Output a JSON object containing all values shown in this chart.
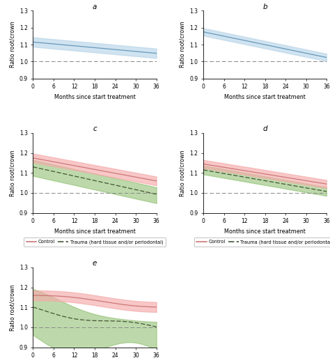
{
  "title_a": "a",
  "title_b": "b",
  "title_c": "c",
  "title_d": "d",
  "title_e": "e",
  "xlabel": "Months since start treatment",
  "ylabel": "Ratio root/crown",
  "x_ticks": [
    0,
    6,
    12,
    18,
    24,
    30,
    36
  ],
  "ylim": [
    0.9,
    1.3
  ],
  "yticks": [
    0.9,
    1.0,
    1.1,
    1.2,
    1.3
  ],
  "hline_y": 1.0,
  "blue_color": "#b8d4e8",
  "blue_line_color": "#6699bb",
  "pink_color": "#f5aaaa",
  "pink_line_color": "#cc7777",
  "green_color": "#88bb66",
  "green_line_color": "#445533",
  "background": "#ffffff"
}
